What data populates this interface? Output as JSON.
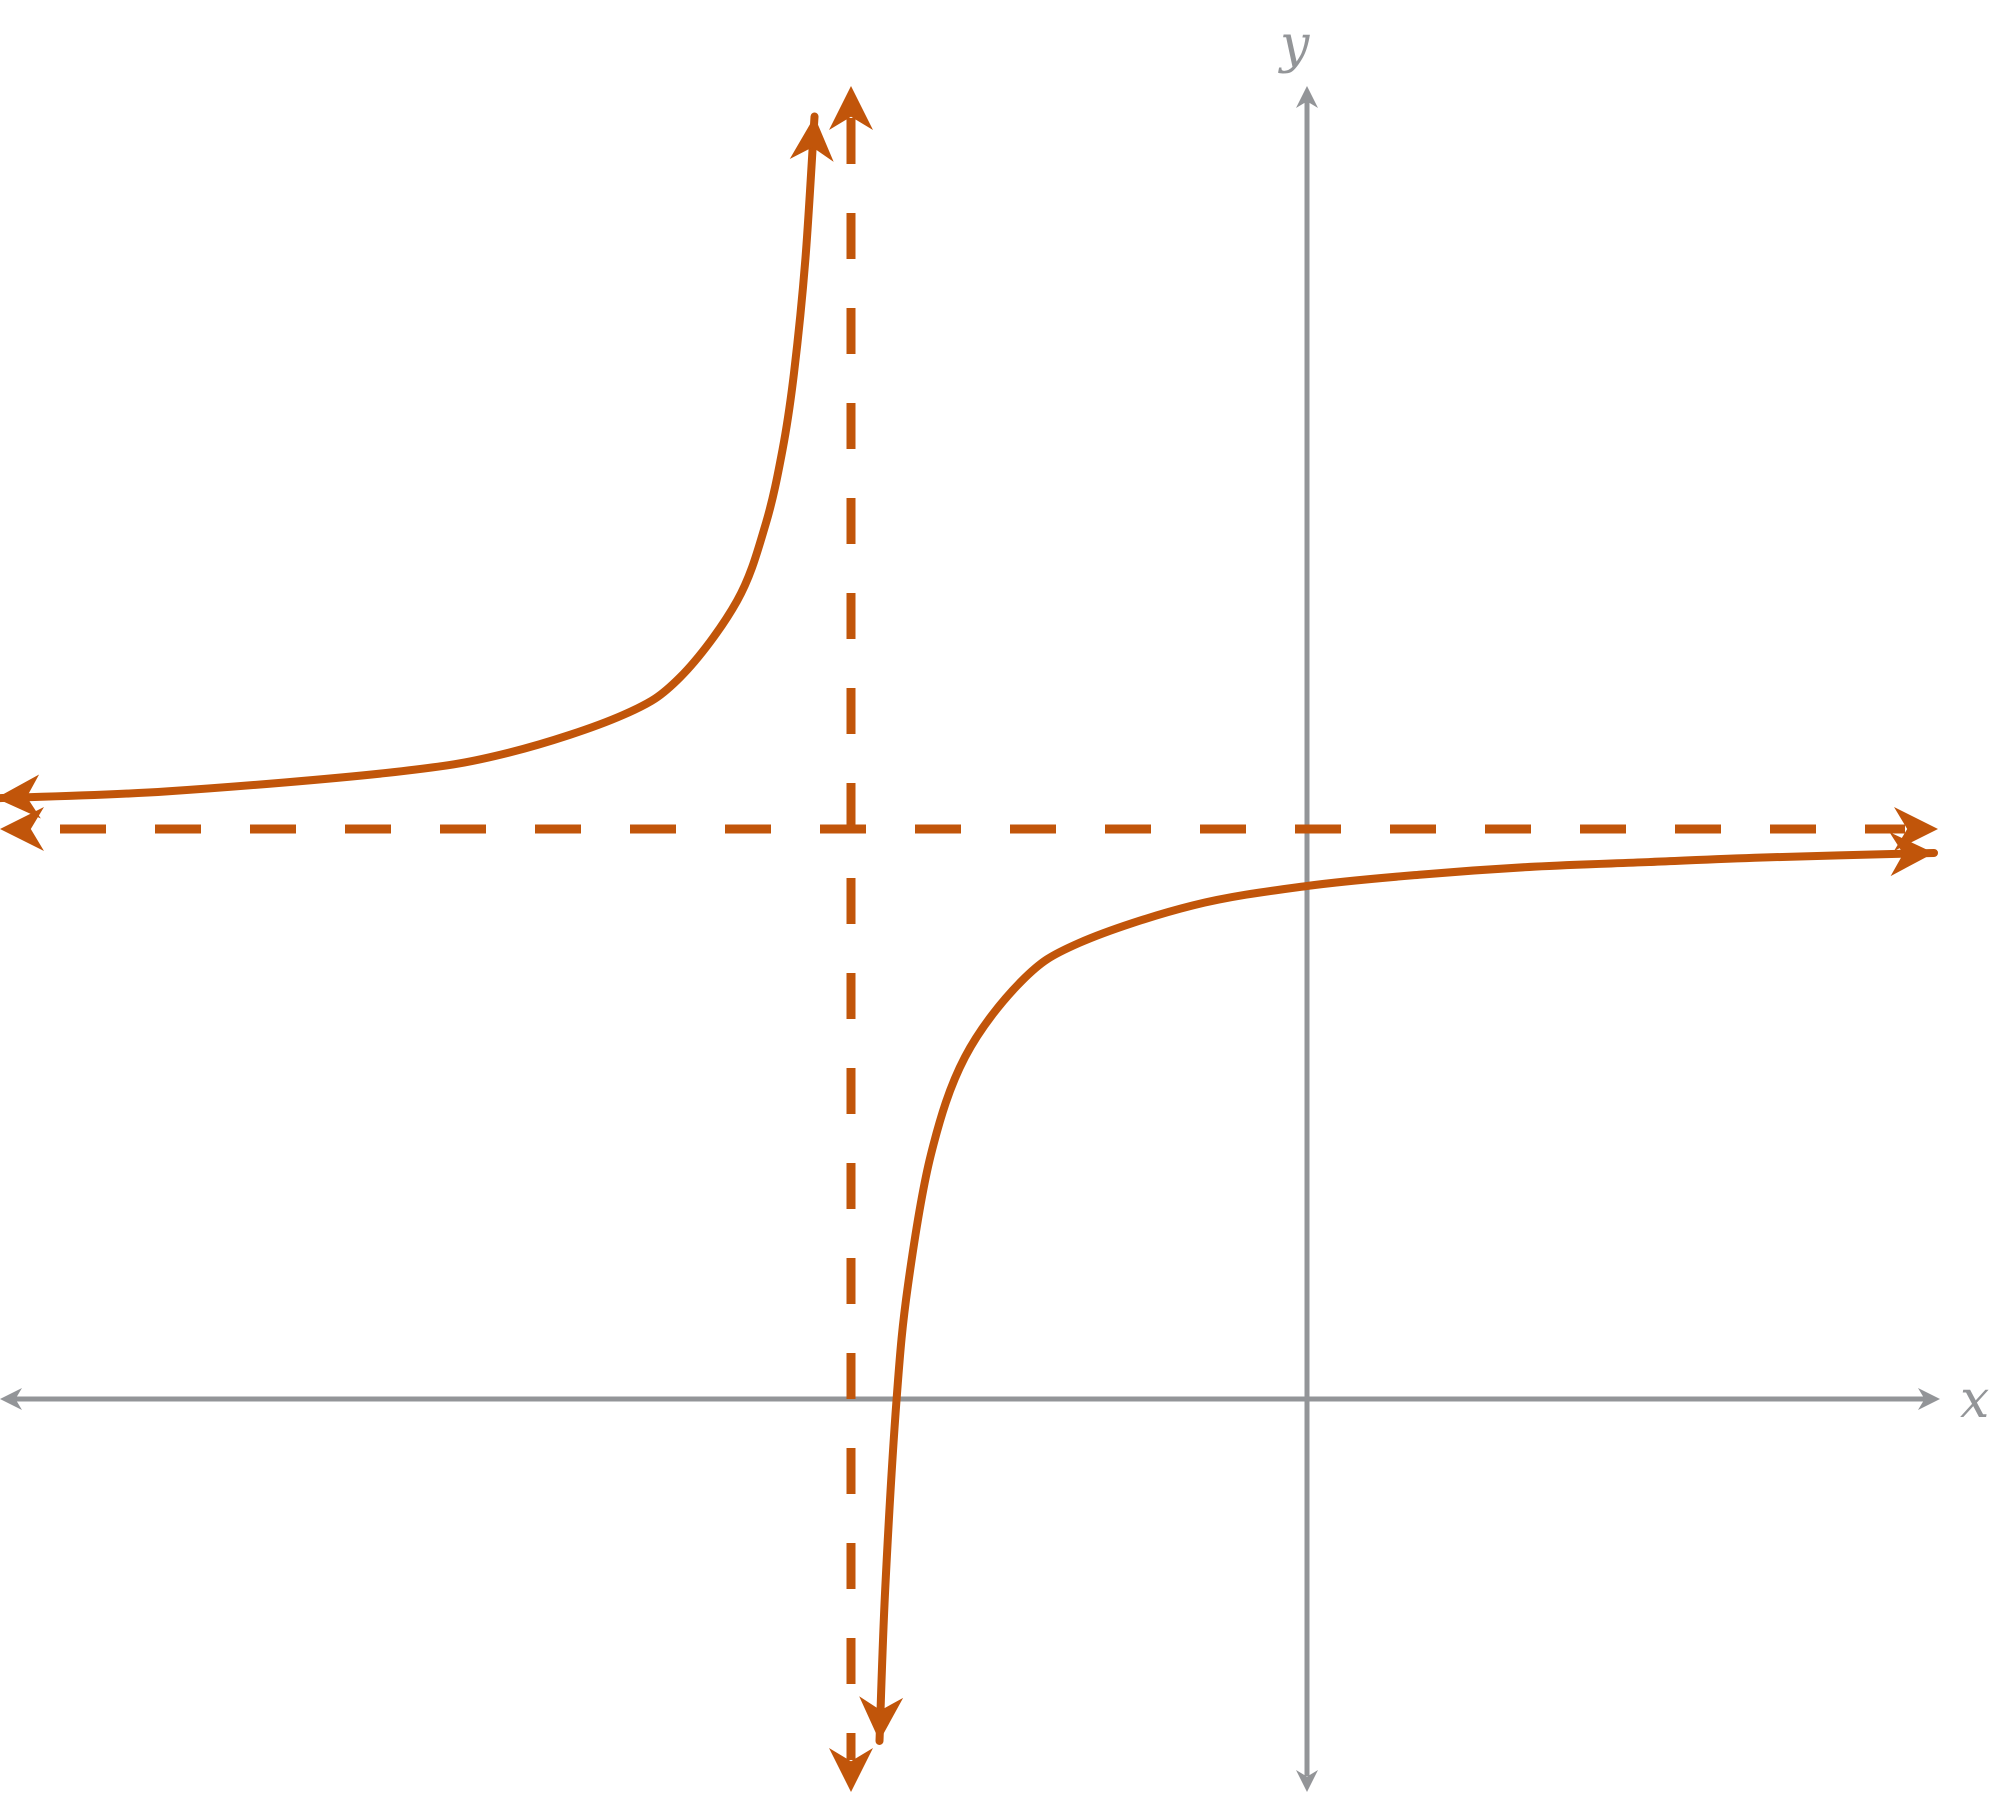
{
  "chart_data": {
    "type": "line",
    "title": "",
    "xlabel": "x",
    "ylabel": "y",
    "xlim": [
      -11.5,
      5.6
    ],
    "ylim": [
      -3.4,
      11.5
    ],
    "grid": false,
    "ticks": false,
    "asymptotes": {
      "vertical": {
        "x": -4,
        "style": "dashed"
      },
      "horizontal": {
        "y": 5,
        "style": "dashed"
      }
    },
    "series": [
      {
        "branch": "left",
        "points": [
          [
            -11.5,
            5.27
          ],
          [
            -10,
            5.33
          ],
          [
            -8,
            5.5
          ],
          [
            -7,
            5.67
          ],
          [
            -6,
            6
          ],
          [
            -5.5,
            6.33
          ],
          [
            -5,
            7
          ],
          [
            -4.75,
            7.67
          ],
          [
            -4.6,
            8.33
          ],
          [
            -4.5,
            9
          ],
          [
            -4.4,
            10
          ],
          [
            -4.32,
            11.25
          ]
        ]
      },
      {
        "branch": "right",
        "points": [
          [
            -3.75,
            -3
          ],
          [
            -3.7,
            -1.67
          ],
          [
            -3.6,
            0
          ],
          [
            -3.5,
            1
          ],
          [
            -3.3,
            2.14
          ],
          [
            -3,
            3
          ],
          [
            -2.5,
            3.67
          ],
          [
            -2,
            4
          ],
          [
            -1,
            4.33
          ],
          [
            0,
            4.5
          ],
          [
            1,
            4.6
          ],
          [
            2,
            4.67
          ],
          [
            3,
            4.71
          ],
          [
            4,
            4.75
          ],
          [
            5.5,
            4.79
          ]
        ]
      }
    ],
    "colors": {
      "curve": "#c1550a",
      "axes": "#939598"
    }
  }
}
